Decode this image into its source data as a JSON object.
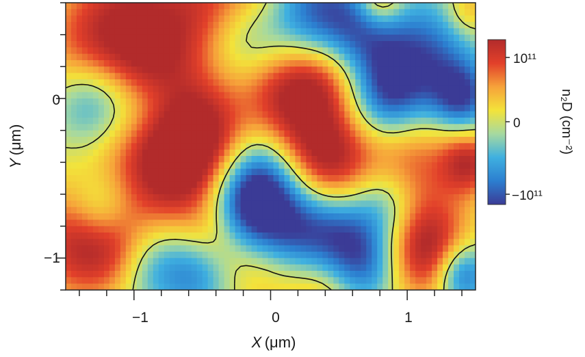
{
  "chart_data": {
    "type": "heatmap",
    "x_range": [
      -1.5,
      1.5
    ],
    "y_range": [
      -1.2,
      0.6
    ],
    "x_ticks": [
      -1,
      0,
      1
    ],
    "x_tick_labels": [
      "−1",
      "0",
      "1"
    ],
    "y_ticks": [
      0,
      -1
    ],
    "y_tick_labels": [
      "0",
      "−1"
    ],
    "xlabel": {
      "symbol": "X",
      "unit": "(μm)"
    },
    "ylabel": {
      "symbol": "Y",
      "unit": "(μm)"
    },
    "colorbar": {
      "title": "n₂D (cm⁻²)",
      "ticks": [
        {
          "value": 100000000000.0,
          "label": "10¹¹"
        },
        {
          "value": 0,
          "label": "0"
        },
        {
          "value": -100000000000.0,
          "label": "−10¹¹"
        }
      ],
      "range": [
        -110000000000.0,
        110000000000.0
      ],
      "colors": [
        "#3b3b96",
        "#2c7fd0",
        "#3fb0e0",
        "#a6d9a0",
        "#f3e33a",
        "#f6a23a",
        "#e2402a",
        "#b22b2b"
      ]
    },
    "contour_level": 0,
    "grid": false,
    "legend": "none",
    "features": [
      {
        "x": -0.52,
        "y": -0.22,
        "value": 110000000000.0,
        "spread": 0.26
      },
      {
        "x": -0.7,
        "y": -0.48,
        "value": 70000000000.0,
        "spread": 0.25
      },
      {
        "x": -0.95,
        "y": -0.3,
        "value": 55000000000.0,
        "spread": 0.28
      },
      {
        "x": -1.3,
        "y": 0.3,
        "value": 70000000000.0,
        "spread": 0.28
      },
      {
        "x": -1.0,
        "y": 0.55,
        "value": 70000000000.0,
        "spread": 0.3
      },
      {
        "x": -0.45,
        "y": 0.55,
        "value": 80000000000.0,
        "spread": 0.25
      },
      {
        "x": -0.12,
        "y": 0.6,
        "value": 70000000000.0,
        "spread": 0.22
      },
      {
        "x": -0.85,
        "y": 0.2,
        "value": 60000000000.0,
        "spread": 0.22
      },
      {
        "x": 0.1,
        "y": 0.05,
        "value": 80000000000.0,
        "spread": 0.22
      },
      {
        "x": 0.4,
        "y": 0.15,
        "value": 95000000000.0,
        "spread": 0.22
      },
      {
        "x": 0.45,
        "y": -0.4,
        "value": 90000000000.0,
        "spread": 0.22
      },
      {
        "x": 0.22,
        "y": -0.3,
        "value": 50000000000.0,
        "spread": 0.22
      },
      {
        "x": 0.8,
        "y": 0.62,
        "value": 80000000000.0,
        "spread": 0.12
      },
      {
        "x": 1.45,
        "y": 0.55,
        "value": 50000000000.0,
        "spread": 0.12
      },
      {
        "x": 1.0,
        "y": -0.4,
        "value": 80000000000.0,
        "spread": 0.26
      },
      {
        "x": 1.15,
        "y": -0.95,
        "value": 120000000000.0,
        "spread": 0.22
      },
      {
        "x": 1.45,
        "y": -0.4,
        "value": 95000000000.0,
        "spread": 0.14
      },
      {
        "x": -1.4,
        "y": -0.9,
        "value": 100000000000.0,
        "spread": 0.25
      },
      {
        "x": -1.1,
        "y": -0.95,
        "value": 55000000000.0,
        "spread": 0.2
      },
      {
        "x": -0.4,
        "y": -0.85,
        "value": 50000000000.0,
        "spread": 0.18
      },
      {
        "x": 0.35,
        "y": -1.2,
        "value": 50000000000.0,
        "spread": 0.2
      },
      {
        "x": -0.05,
        "y": -1.05,
        "value": 45000000000.0,
        "spread": 0.2
      },
      {
        "x": -0.2,
        "y": 0.45,
        "value": -85000000000.0,
        "spread": 0.22
      },
      {
        "x": 0.3,
        "y": 0.5,
        "value": -100000000000.0,
        "spread": 0.25
      },
      {
        "x": 0.65,
        "y": 0.4,
        "value": -80000000000.0,
        "spread": 0.22
      },
      {
        "x": 1.15,
        "y": 0.25,
        "value": -90000000000.0,
        "spread": 0.26
      },
      {
        "x": 0.85,
        "y": 0.0,
        "value": -95000000000.0,
        "spread": 0.2
      },
      {
        "x": -1.3,
        "y": -0.02,
        "value": -85000000000.0,
        "spread": 0.2
      },
      {
        "x": -0.9,
        "y": -0.05,
        "value": -50000000000.0,
        "spread": 0.2
      },
      {
        "x": -0.05,
        "y": -0.5,
        "value": -95000000000.0,
        "spread": 0.22
      },
      {
        "x": -0.2,
        "y": -0.7,
        "value": -90000000000.0,
        "spread": 0.2
      },
      {
        "x": 0.15,
        "y": -0.85,
        "value": -90000000000.0,
        "spread": 0.22
      },
      {
        "x": 0.5,
        "y": -0.85,
        "value": -80000000000.0,
        "spread": 0.2
      },
      {
        "x": 0.85,
        "y": -0.65,
        "value": -70000000000.0,
        "spread": 0.18
      },
      {
        "x": -1.25,
        "y": -0.7,
        "value": -60000000000.0,
        "spread": 0.16
      },
      {
        "x": -0.9,
        "y": -1.05,
        "value": -60000000000.0,
        "spread": 0.18
      },
      {
        "x": -0.55,
        "y": -1.1,
        "value": -70000000000.0,
        "spread": 0.18
      },
      {
        "x": 0.7,
        "y": -1.05,
        "value": -75000000000.0,
        "spread": 0.18
      },
      {
        "x": 1.4,
        "y": -1.1,
        "value": -110000000000.0,
        "spread": 0.14
      },
      {
        "x": 1.4,
        "y": 0.0,
        "value": -90000000000.0,
        "spread": 0.15
      }
    ]
  }
}
